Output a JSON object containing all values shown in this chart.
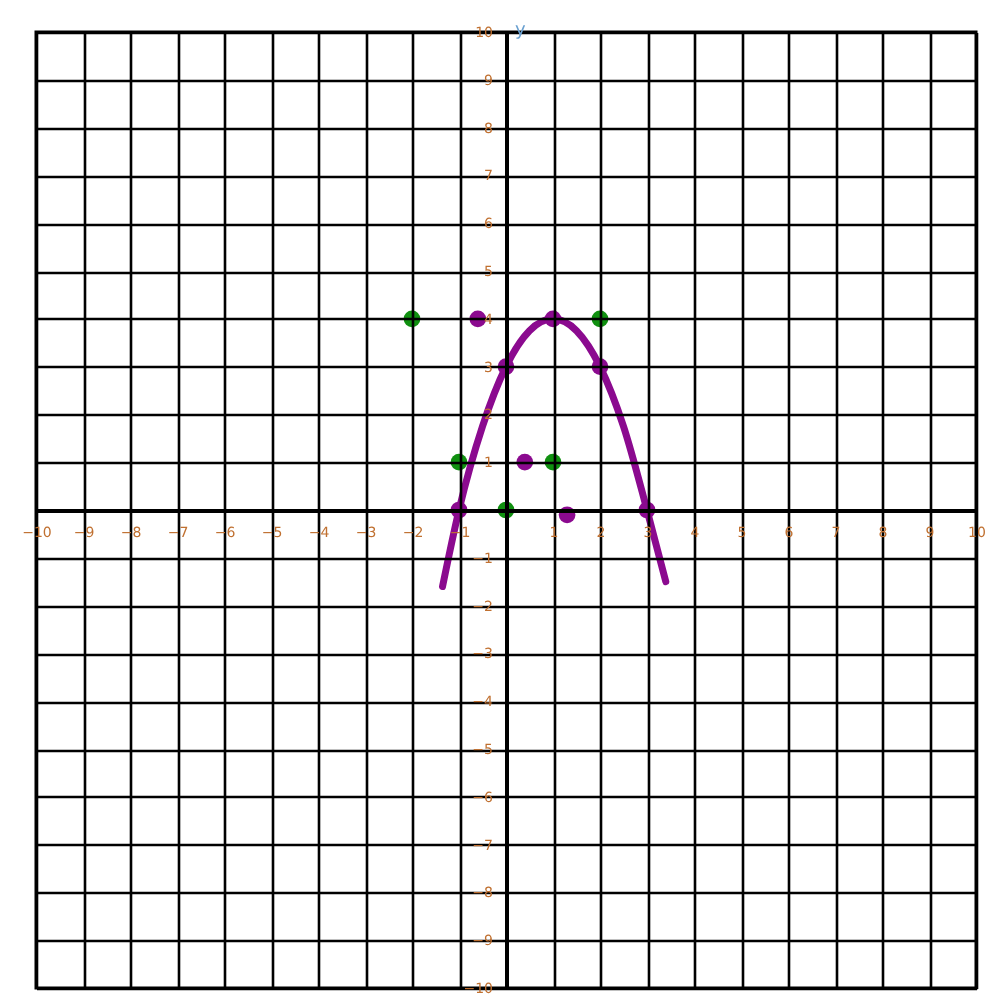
{
  "chart_data": {
    "type": "scatter",
    "ylabel": "y",
    "xlim": [
      -10,
      10
    ],
    "ylim": [
      -10,
      10
    ],
    "xticks": [
      -10,
      -9,
      -8,
      -7,
      -6,
      -5,
      -4,
      -3,
      -2,
      -1,
      {
        "value": 0,
        "label": null
      },
      1,
      2,
      3,
      4,
      5,
      6,
      7,
      8,
      9,
      10
    ],
    "yticks": [
      -10,
      -9,
      -8,
      -7,
      -6,
      -5,
      -4,
      -3,
      -2,
      -1,
      {
        "value": 0,
        "label": null
      },
      1,
      2,
      3,
      4,
      5,
      6,
      7,
      8,
      9,
      10
    ],
    "grid": true,
    "marker": "circle",
    "series": [
      {
        "type": "line",
        "marker": "none",
        "color": "#8b0a8f",
        "x": [
          -1.35,
          -1,
          -0.5,
          0,
          0.5,
          1,
          1.5,
          2,
          2.5,
          3,
          3.4
        ],
        "values": [
          -1.6,
          0,
          1.75,
          3,
          3.75,
          4,
          3.75,
          3,
          1.75,
          0,
          -1.5
        ]
      },
      {
        "color": "#8b0a8f",
        "x": [
          -1,
          0,
          1,
          2,
          3
        ],
        "values": [
          0,
          3,
          4,
          3,
          0
        ]
      },
      {
        "color": "#8b0a8f",
        "x": [
          -0.6,
          0.4,
          1.3
        ],
        "values": [
          4,
          1,
          -0.1
        ]
      },
      {
        "color": "#109010",
        "x": [
          -2,
          2,
          -1,
          1,
          0
        ],
        "values": [
          4,
          4,
          1,
          1,
          0
        ]
      }
    ]
  }
}
